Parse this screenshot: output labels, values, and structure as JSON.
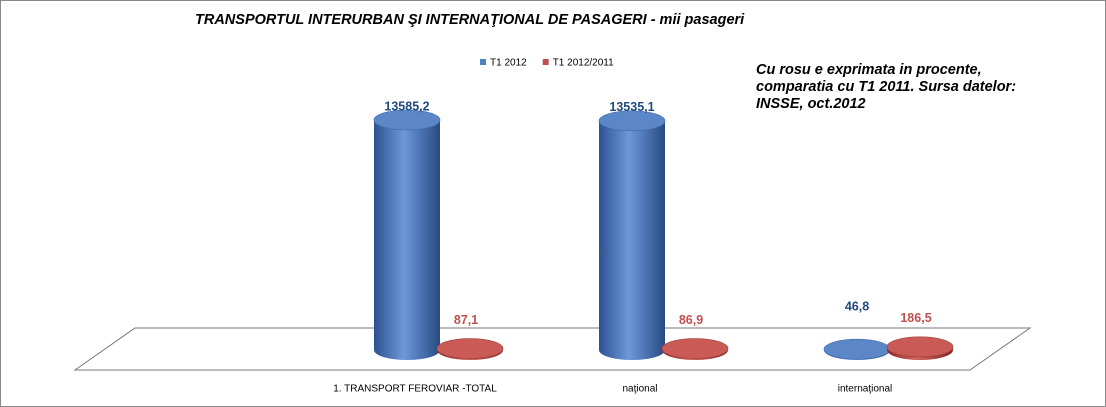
{
  "chart_data": {
    "type": "cylinder",
    "title": "TRANSPORTUL INTERURBAN ŞI INTERNAŢIONAL DE PASAGERI - mii pasageri",
    "annotation": "Cu rosu e exprimata in procente, comparatia cu T1 2011. Sursa datelor: INSSE, oct.2012",
    "categories": [
      "1. TRANSPORT FEROVIAR -TOTAL",
      "naţional",
      "internaţional"
    ],
    "series": [
      {
        "name": "T1 2012",
        "color": "#4f81bd",
        "values": [
          13585.2,
          13535.1,
          46.8
        ],
        "value_labels": [
          "13585,2",
          "13535,1",
          "46,8"
        ]
      },
      {
        "name": "T1 2012/2011",
        "color": "#c0504d",
        "values": [
          87.1,
          86.9,
          186.5
        ],
        "value_labels": [
          "87,1",
          "86,9",
          "186,5"
        ]
      }
    ],
    "legend": "top"
  }
}
